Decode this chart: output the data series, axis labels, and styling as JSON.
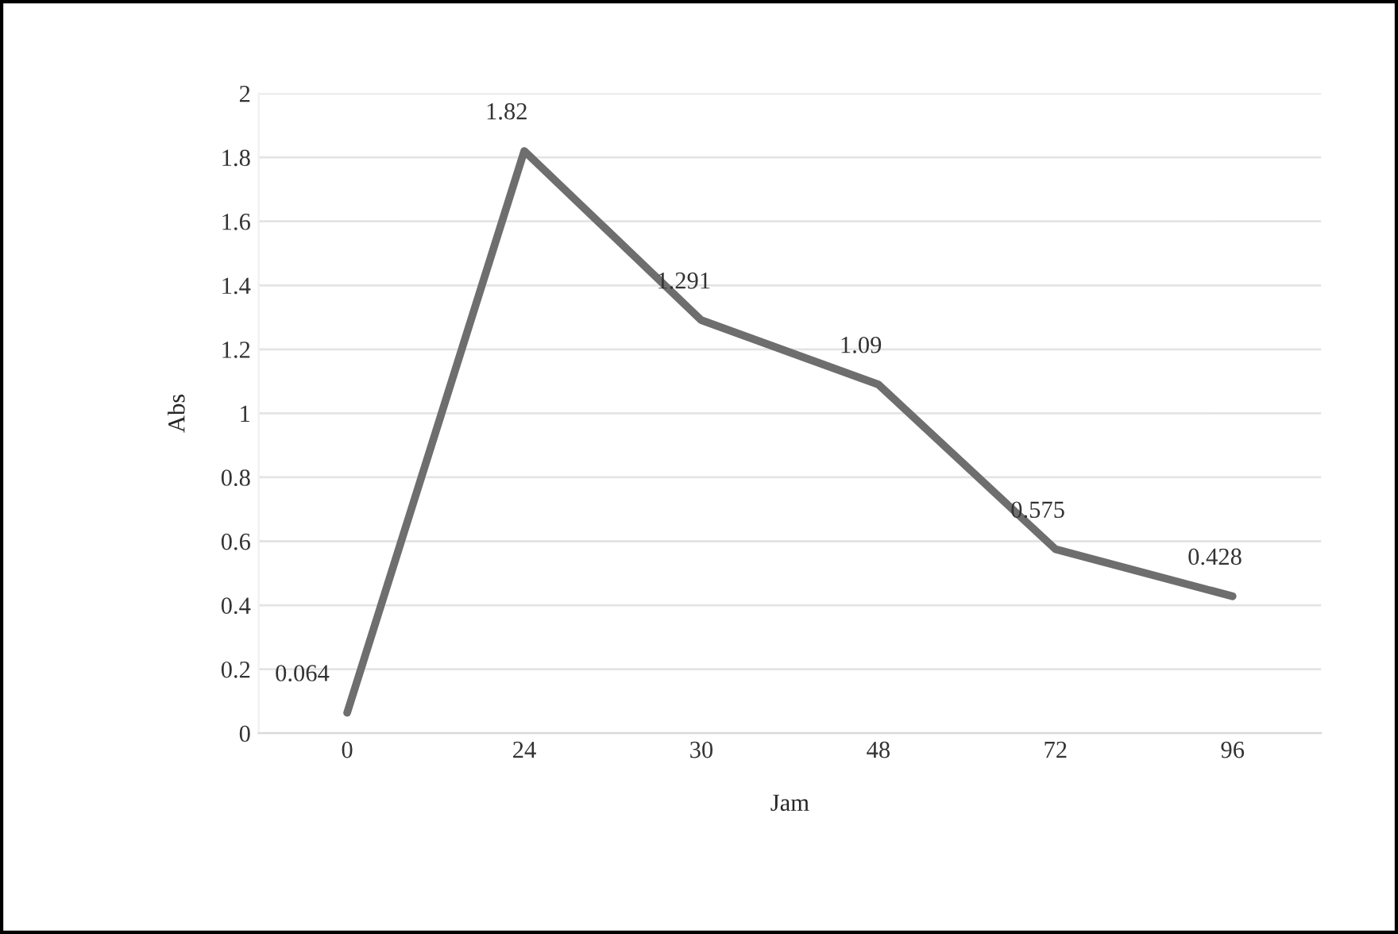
{
  "chart_data": {
    "type": "line",
    "xlabel": "Jam",
    "ylabel": "Abs",
    "categories": [
      "0",
      "24",
      "30",
      "48",
      "72",
      "96"
    ],
    "series": [
      {
        "color": "#6e6e6e",
        "values": [
          0.064,
          1.82,
          1.291,
          1.09,
          0.575,
          0.428
        ]
      }
    ],
    "ylim": [
      0,
      2
    ],
    "yticks": [
      0,
      0.2,
      0.4,
      0.6,
      0.8,
      1,
      1.2,
      1.4,
      1.6,
      1.8,
      2
    ],
    "grid": "y",
    "data_labels": true,
    "marker": "none",
    "line_style": "solid"
  }
}
